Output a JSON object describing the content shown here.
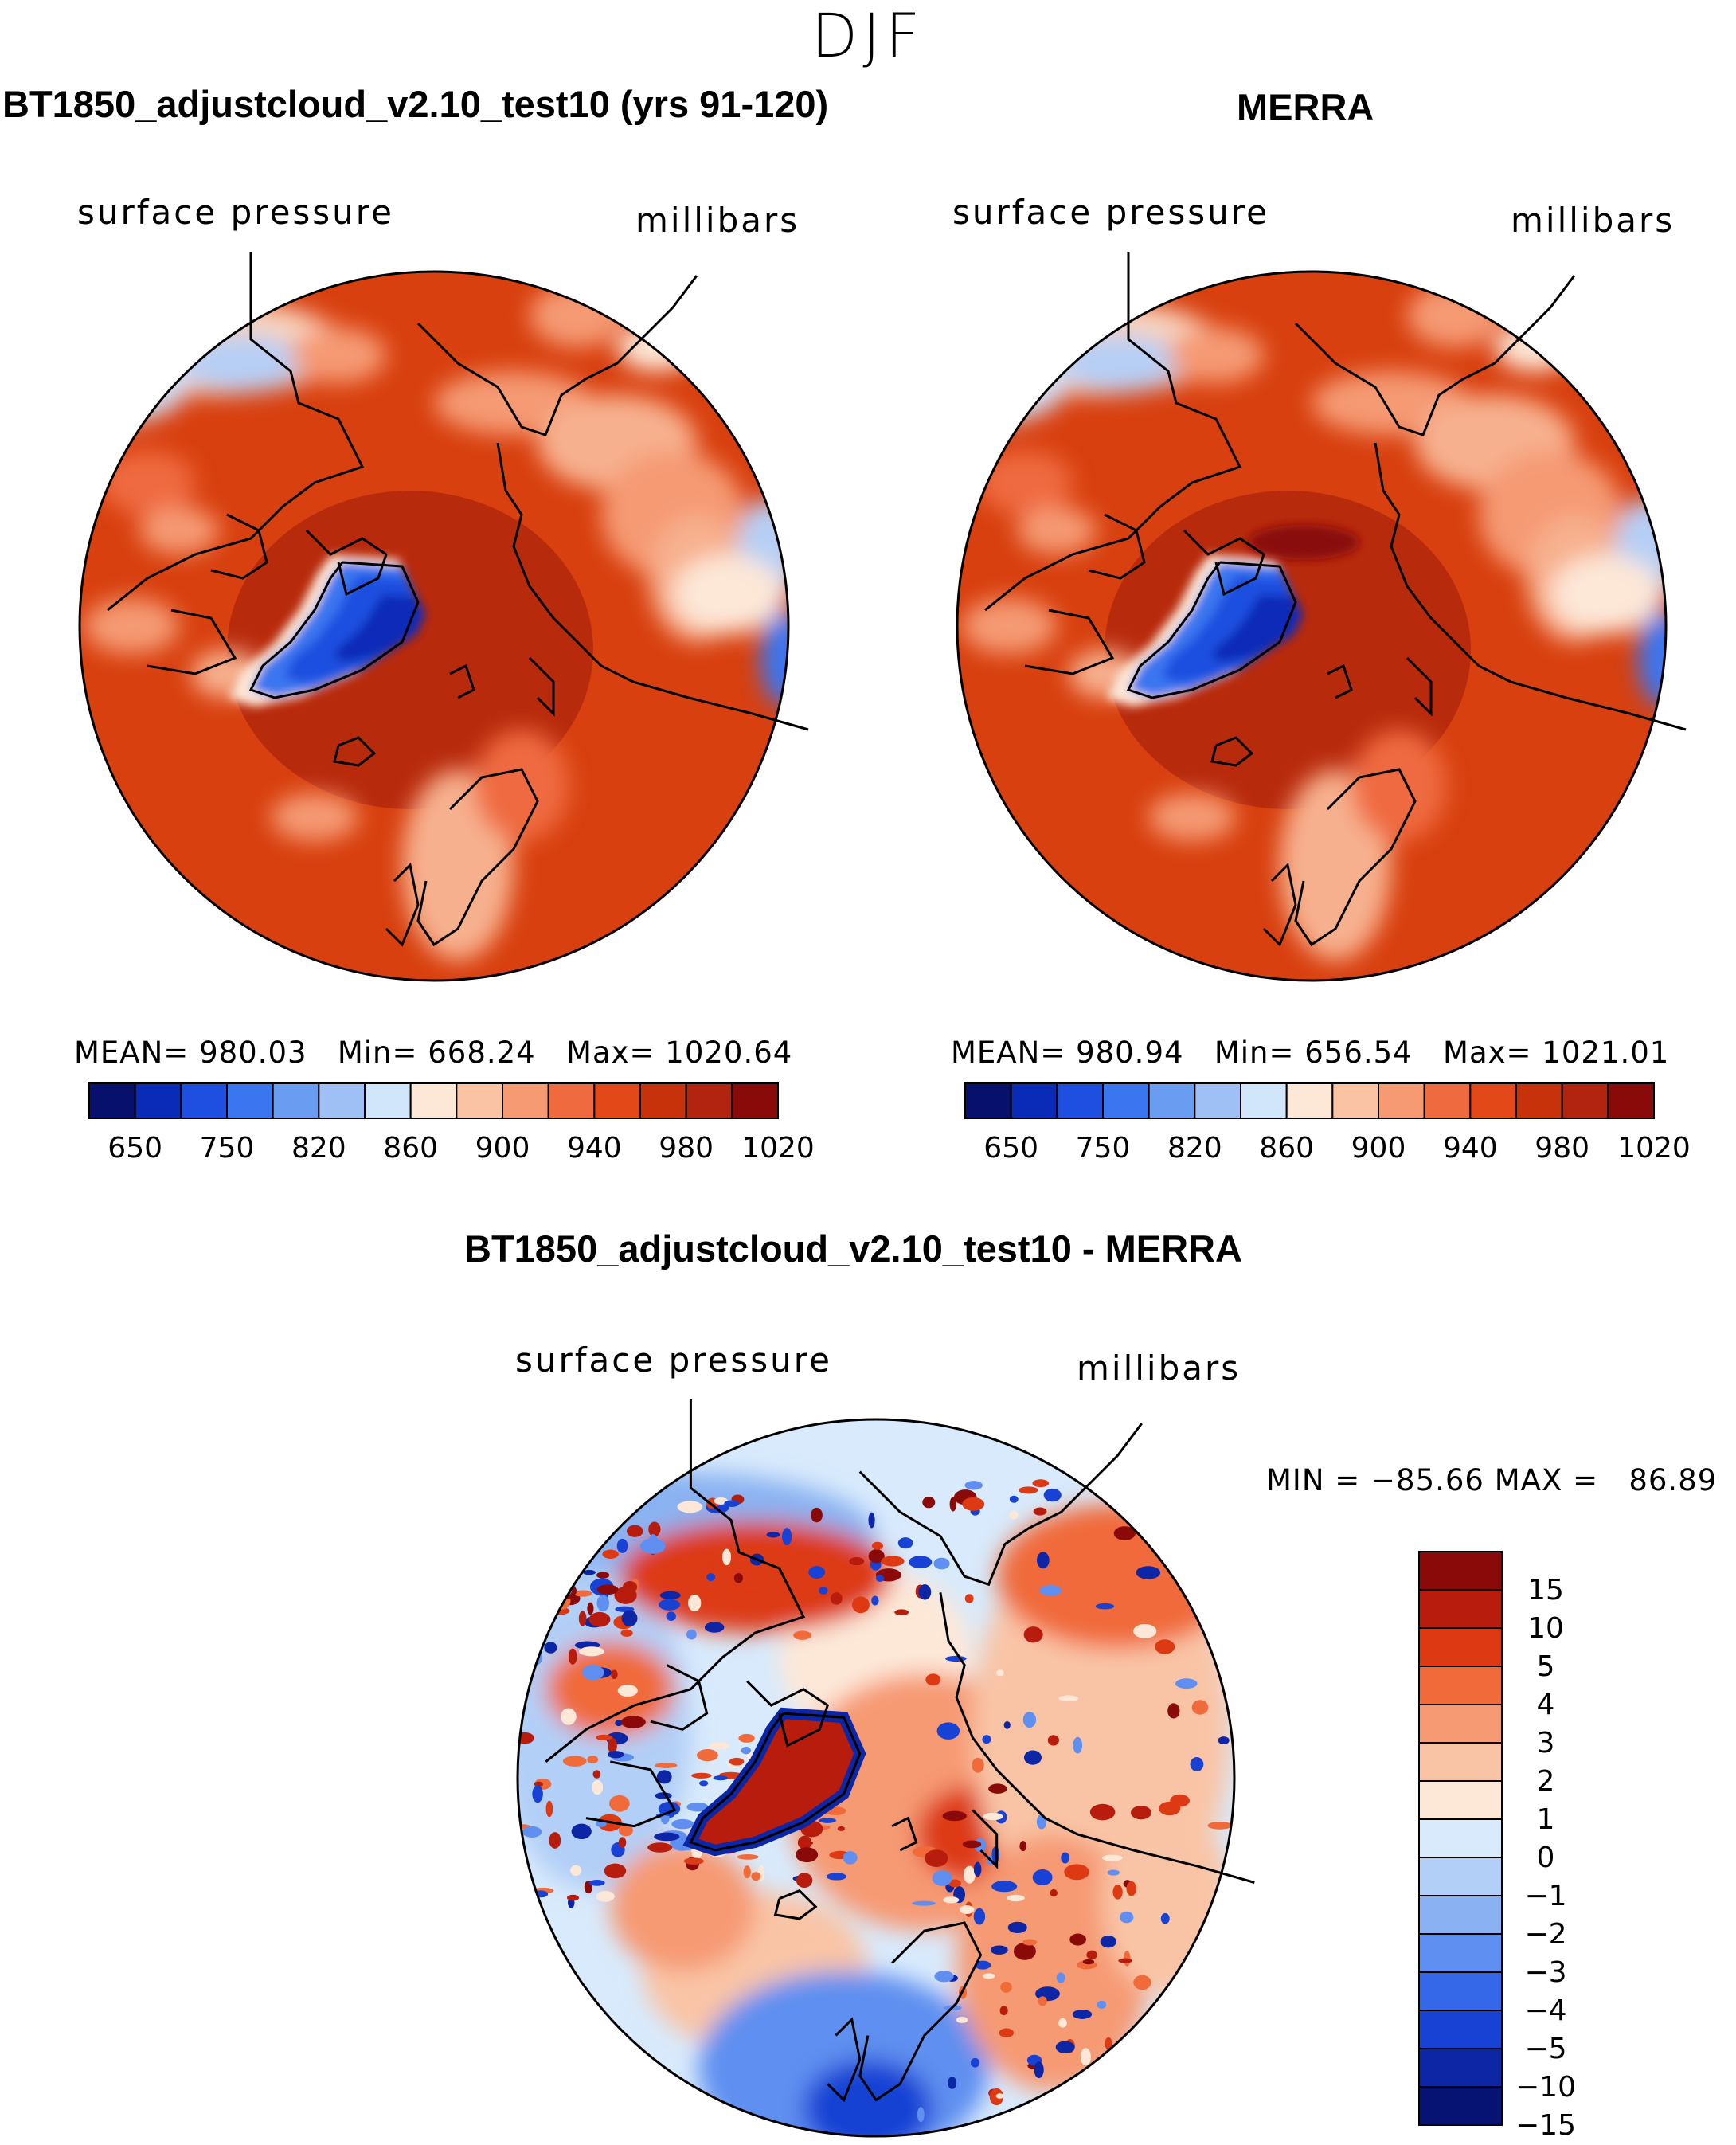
{
  "season": "DJF",
  "panels": [
    {
      "title": "BT1850_adjustcloud_v2.10_test10 (yrs 91-120)",
      "variable": "surface pressure",
      "units": "millibars",
      "stats": {
        "mean": "980.03",
        "min": "668.24",
        "max": "1020.64"
      },
      "stats_labels": {
        "mean": "MEAN=",
        "min": "Min=",
        "max": "Max="
      }
    },
    {
      "title": "MERRA",
      "variable": "surface pressure",
      "units": "millibars",
      "stats": {
        "mean": "980.94",
        "min": "656.54",
        "max": "1021.01"
      },
      "stats_labels": {
        "mean": "MEAN=",
        "min": "Min=",
        "max": "Max="
      }
    }
  ],
  "diff_panel": {
    "title": "BT1850_adjustcloud_v2.10_test10 - MERRA",
    "variable": "surface pressure",
    "units": "millibars",
    "stats_text": "MIN = −85.66 MAX =   86.89",
    "min": -85.66,
    "max": 86.89
  },
  "chart_data": [
    {
      "type": "heatmap",
      "projection": "north polar stereographic",
      "title": "BT1850_adjustcloud_v2.10_test10 (yrs 91-120)",
      "field": "surface pressure",
      "units": "millibars",
      "mean": 980.03,
      "min": 668.24,
      "max": 1020.64,
      "colorbar_ticks": [
        "650",
        "750",
        "820",
        "860",
        "900",
        "940",
        "980",
        "1020"
      ],
      "colorbar_colors": [
        "#08106e",
        "#0a2ab8",
        "#1e4fe0",
        "#3b76f0",
        "#6a9cf2",
        "#9ec0f5",
        "#d2e6fb",
        "#fde7d7",
        "#f9c3a4",
        "#f59a73",
        "#ef6a3f",
        "#e24818",
        "#c8320a",
        "#b32410",
        "#8a0a0a"
      ]
    },
    {
      "type": "heatmap",
      "projection": "north polar stereographic",
      "title": "MERRA",
      "field": "surface pressure",
      "units": "millibars",
      "mean": 980.94,
      "min": 656.54,
      "max": 1021.01,
      "colorbar_ticks": [
        "650",
        "750",
        "820",
        "860",
        "900",
        "940",
        "980",
        "1020"
      ],
      "colorbar_colors": [
        "#08106e",
        "#0a2ab8",
        "#1e4fe0",
        "#3b76f0",
        "#6a9cf2",
        "#9ec0f5",
        "#d2e6fb",
        "#fde7d7",
        "#f9c3a4",
        "#f59a73",
        "#ef6a3f",
        "#e24818",
        "#c8320a",
        "#b32410",
        "#8a0a0a"
      ]
    },
    {
      "type": "heatmap",
      "projection": "north polar stereographic",
      "title": "BT1850_adjustcloud_v2.10_test10 - MERRA",
      "field": "surface pressure difference",
      "units": "millibars",
      "min": -85.66,
      "max": 86.89,
      "colorbar_ticks": [
        "15",
        "10",
        "5",
        "4",
        "3",
        "2",
        "1",
        "0",
        "−1",
        "−2",
        "−3",
        "−4",
        "−5",
        "−10",
        "−15"
      ],
      "colorbar_colors": [
        "#8a0a0a",
        "#b81c0c",
        "#dd3a14",
        "#f06a3a",
        "#f69a73",
        "#f9c4a6",
        "#fde8d8",
        "#d8eafc",
        "#b2cff7",
        "#8ab2f2",
        "#5f8ff0",
        "#3468e8",
        "#1842d4",
        "#0c26a6",
        "#071373"
      ]
    }
  ]
}
